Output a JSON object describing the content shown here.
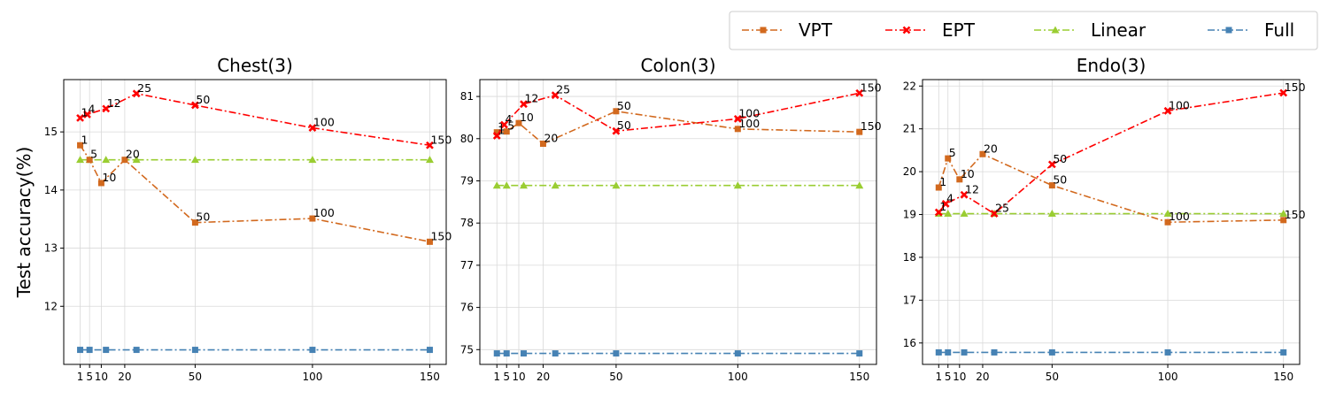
{
  "chart_data": [
    {
      "type": "line",
      "title": "Chest(3)",
      "xlabel": "",
      "ylabel": "Test accuracy(%)",
      "xlim": [
        -6,
        157
      ],
      "ylim": [
        11.0,
        15.9
      ],
      "xticks": [
        1,
        5,
        10,
        20,
        50,
        100,
        150
      ],
      "yticks": [
        12,
        13,
        14,
        15
      ],
      "grid": true,
      "series": [
        {
          "name": "VPT",
          "x": [
            1,
            5,
            10,
            20,
            50,
            100,
            150
          ],
          "y": [
            14.77,
            14.52,
            14.12,
            14.52,
            13.44,
            13.51,
            13.11
          ],
          "labels": [
            "1",
            "5",
            "10",
            "20",
            "50",
            "100",
            "150"
          ]
        },
        {
          "name": "EPT",
          "x": [
            1,
            4,
            12,
            25,
            50,
            100,
            150
          ],
          "y": [
            15.24,
            15.3,
            15.4,
            15.66,
            15.46,
            15.07,
            14.77
          ],
          "labels": [
            "1",
            "4",
            "12",
            "25",
            "50",
            "100",
            "150"
          ]
        },
        {
          "name": "Linear",
          "x": [
            1,
            5,
            12,
            25,
            50,
            100,
            150
          ],
          "y": [
            14.52,
            14.52,
            14.52,
            14.52,
            14.52,
            14.52,
            14.52
          ],
          "labels": []
        },
        {
          "name": "Full",
          "x": [
            1,
            5,
            12,
            25,
            50,
            100,
            150
          ],
          "y": [
            11.25,
            11.25,
            11.25,
            11.25,
            11.25,
            11.25,
            11.25
          ],
          "labels": []
        }
      ]
    },
    {
      "type": "line",
      "title": "Colon(3)",
      "xlabel": "",
      "ylabel": "",
      "xlim": [
        -6,
        157
      ],
      "ylim": [
        74.65,
        81.4
      ],
      "xticks": [
        1,
        5,
        10,
        20,
        50,
        100,
        150
      ],
      "yticks": [
        75,
        76,
        77,
        78,
        79,
        80,
        81
      ],
      "grid": true,
      "series": [
        {
          "name": "VPT",
          "x": [
            1,
            5,
            10,
            20,
            50,
            100,
            150
          ],
          "y": [
            80.15,
            80.17,
            80.37,
            79.88,
            80.65,
            80.23,
            80.16
          ],
          "labels": [
            "1",
            "5",
            "10",
            "20",
            "50",
            "100",
            "150"
          ]
        },
        {
          "name": "EPT",
          "x": [
            1,
            4,
            12,
            25,
            50,
            100,
            150
          ],
          "y": [
            80.07,
            80.33,
            80.82,
            81.03,
            80.18,
            80.47,
            81.08
          ],
          "labels": [
            "1",
            "4",
            "12",
            "25",
            "50",
            "100",
            "150"
          ]
        },
        {
          "name": "Linear",
          "x": [
            1,
            5,
            12,
            25,
            50,
            100,
            150
          ],
          "y": [
            78.89,
            78.89,
            78.89,
            78.89,
            78.89,
            78.89,
            78.89
          ],
          "labels": []
        },
        {
          "name": "Full",
          "x": [
            1,
            5,
            12,
            25,
            50,
            100,
            150
          ],
          "y": [
            74.91,
            74.91,
            74.91,
            74.91,
            74.91,
            74.91,
            74.91
          ],
          "labels": []
        }
      ]
    },
    {
      "type": "line",
      "title": "Endo(3)",
      "xlabel": "",
      "ylabel": "",
      "xlim": [
        -6,
        157
      ],
      "ylim": [
        15.5,
        22.15
      ],
      "xticks": [
        1,
        5,
        10,
        20,
        50,
        100,
        150
      ],
      "yticks": [
        16,
        17,
        18,
        19,
        20,
        21,
        22
      ],
      "grid": true,
      "series": [
        {
          "name": "VPT",
          "x": [
            1,
            5,
            10,
            20,
            50,
            100,
            150
          ],
          "y": [
            19.63,
            20.31,
            19.82,
            20.41,
            19.68,
            18.82,
            18.87
          ],
          "labels": [
            "1",
            "5",
            "10",
            "20",
            "50",
            "100",
            "150"
          ]
        },
        {
          "name": "EPT",
          "x": [
            1,
            4,
            12,
            25,
            50,
            100,
            150
          ],
          "y": [
            19.05,
            19.25,
            19.46,
            19.02,
            20.17,
            21.42,
            21.84
          ],
          "labels": [
            "1",
            "4",
            "12",
            "25",
            "50",
            "100",
            "150"
          ]
        },
        {
          "name": "Linear",
          "x": [
            1,
            5,
            12,
            25,
            50,
            100,
            150
          ],
          "y": [
            19.02,
            19.02,
            19.02,
            19.02,
            19.02,
            19.02,
            19.02
          ],
          "labels": []
        },
        {
          "name": "Full",
          "x": [
            1,
            5,
            12,
            25,
            50,
            100,
            150
          ],
          "y": [
            15.78,
            15.78,
            15.78,
            15.78,
            15.78,
            15.78,
            15.78
          ],
          "labels": []
        }
      ]
    }
  ],
  "legend": {
    "placement": "top-right",
    "entries": [
      {
        "name": "VPT",
        "color": "#d2691e",
        "marker": "square"
      },
      {
        "name": "EPT",
        "color": "#ff0000",
        "marker": "x"
      },
      {
        "name": "Linear",
        "color": "#9acd32",
        "marker": "triangle"
      },
      {
        "name": "Full",
        "color": "#4682b4",
        "marker": "square"
      }
    ]
  },
  "colors": {
    "VPT": "#d2691e",
    "EPT": "#ff0000",
    "Linear": "#9acd32",
    "Full": "#4682b4"
  },
  "markers": {
    "VPT": "square",
    "EPT": "x",
    "Linear": "triangle",
    "Full": "square"
  }
}
